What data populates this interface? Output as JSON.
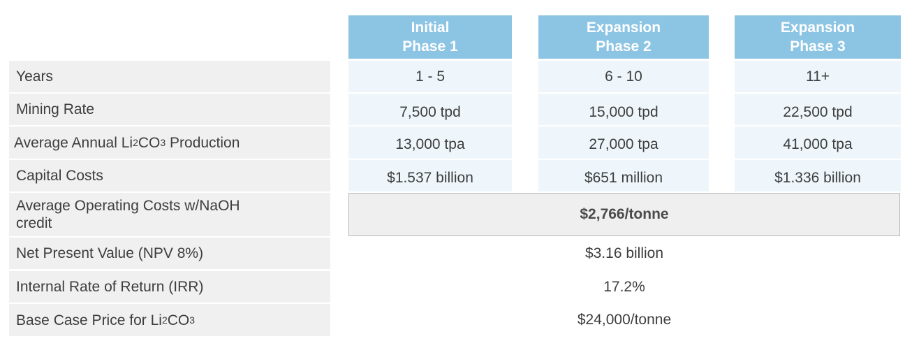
{
  "columns": [
    {
      "line1": "Initial",
      "line2": "Phase 1"
    },
    {
      "line1": "Expansion",
      "line2": "Phase 2"
    },
    {
      "line1": "Expansion",
      "line2": "Phase 3"
    }
  ],
  "rows": [
    {
      "label": "Years",
      "values": [
        "1 - 5",
        "6 - 10",
        "11+"
      ]
    },
    {
      "label": "Mining Rate",
      "values": [
        "7,500 tpd",
        "15,000 tpd",
        "22,500 tpd"
      ]
    },
    {
      "label_pre": "Average Annual Li",
      "label_sub1": "2",
      "label_mid": "CO",
      "label_sub2": "3",
      "label_post": " Production",
      "values": [
        "13,000 tpa",
        "27,000 tpa",
        "41,000 tpa"
      ]
    },
    {
      "label": "Capital Costs",
      "values": [
        "$1.537 billion",
        "$651 million",
        "$1.336 billion"
      ]
    },
    {
      "label_line1": "Average Operating Costs w/NaOH",
      "label_line2": "credit",
      "merged_value": "$2,766/tonne"
    },
    {
      "label": "Net Present Value (NPV 8%)",
      "value": "$3.16 billion"
    },
    {
      "label": "Internal Rate of Return (IRR)",
      "value": "17.2%"
    },
    {
      "label_pre": "Base Case Price for Li",
      "label_sub1": "2",
      "label_mid": "CO",
      "label_sub2": "3",
      "value": "$24,000/tonne"
    }
  ]
}
